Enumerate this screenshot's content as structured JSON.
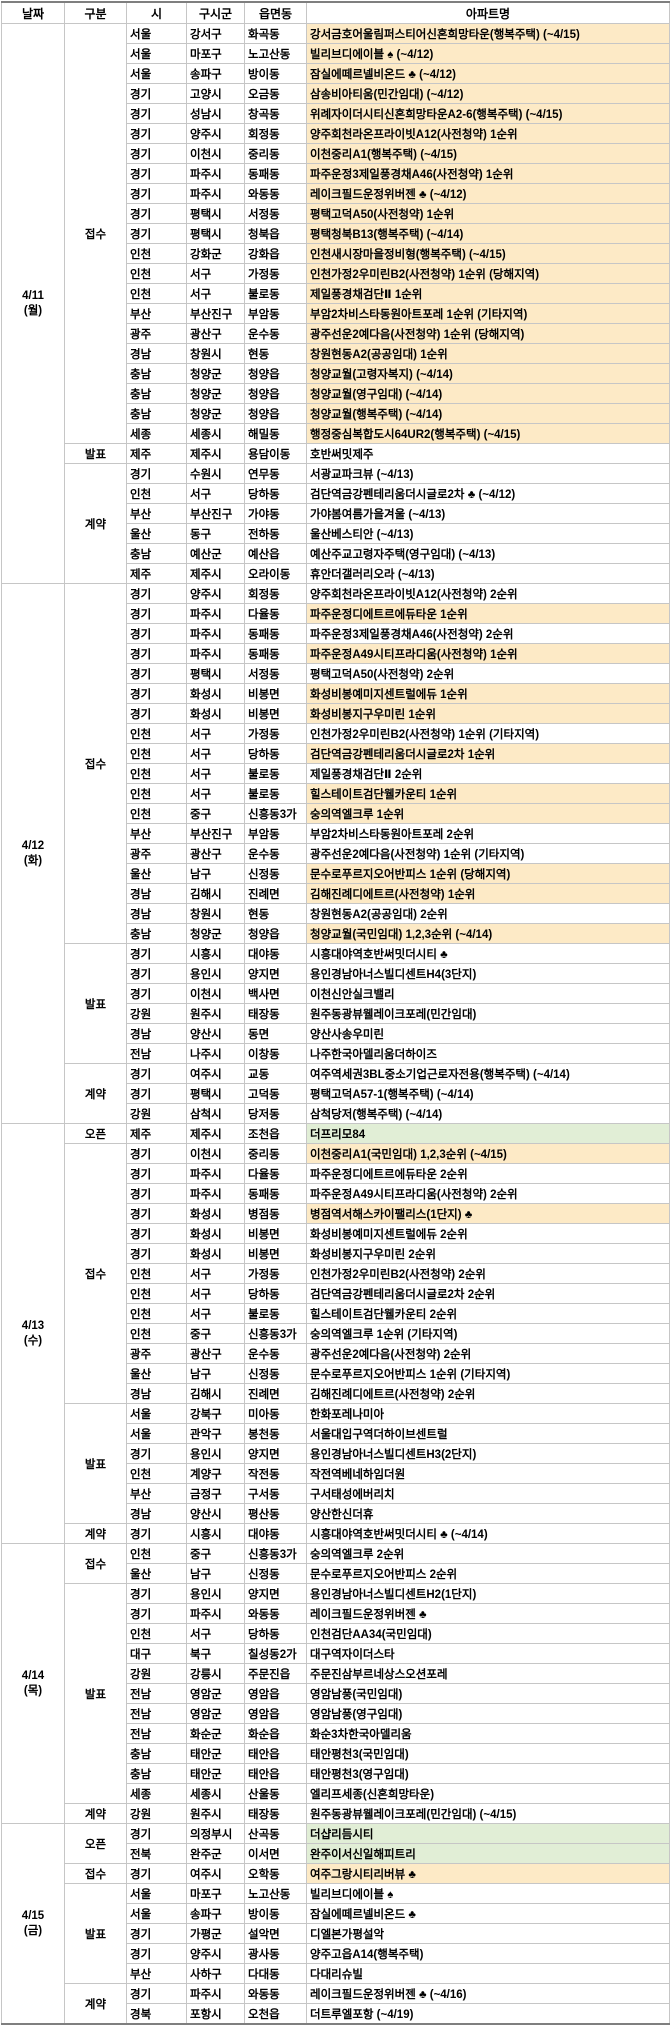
{
  "columns": [
    "날짜",
    "구분",
    "시",
    "구시군",
    "읍면동",
    "아파트명"
  ],
  "colors": {
    "highlight_yellow": "#fdeac6",
    "highlight_green": "#e1eed6",
    "cell_border": "#c6c6c6",
    "outer_border": "#7f7f7f",
    "text": "#000000",
    "background": "#ffffff"
  },
  "legend": {
    "yellow_means": "highlighted schedule row",
    "green_means": "open event row"
  },
  "days": [
    {
      "date": "4/11",
      "weekday": "(월)",
      "groups": [
        {
          "label": "접수",
          "rows": [
            [
              "서울",
              "강서구",
              "화곡동",
              "강서금호어울림퍼스티어신혼희망타운(행복주택) (~4/15)",
              "y"
            ],
            [
              "서울",
              "마포구",
              "노고산동",
              "빌리브디에이블 ♠ (~4/12)",
              "y"
            ],
            [
              "서울",
              "송파구",
              "방이동",
              "잠실에떼르넬비온드 ♣ (~4/12)",
              "y"
            ],
            [
              "경기",
              "고양시",
              "오금동",
              "삼송비아티움(민간임대) (~4/12)",
              "y"
            ],
            [
              "경기",
              "성남시",
              "창곡동",
              "위례자이더시티신혼희망타운A2-6(행복주택) (~4/15)",
              "y"
            ],
            [
              "경기",
              "양주시",
              "회정동",
              "양주회천라온프라이빗A12(사전청약) 1순위",
              "y"
            ],
            [
              "경기",
              "이천시",
              "중리동",
              "이천중리A1(행복주택) (~4/15)",
              "y"
            ],
            [
              "경기",
              "파주시",
              "동패동",
              "파주운정3제일풍경채A46(사전청약) 1순위",
              "y"
            ],
            [
              "경기",
              "파주시",
              "와동동",
              "레이크필드운정위버젠 ♣ (~4/12)",
              "y"
            ],
            [
              "경기",
              "평택시",
              "서정동",
              "평택고덕A50(사전청약) 1순위",
              "y"
            ],
            [
              "경기",
              "평택시",
              "청북읍",
              "평택청북B13(행복주택) (~4/14)",
              "y"
            ],
            [
              "인천",
              "강화군",
              "강화읍",
              "인천새시장마을정비형(행복주택) (~4/15)",
              "y"
            ],
            [
              "인천",
              "서구",
              "가정동",
              "인천가정2우미린B2(사전청약) 1순위 (당해지역)",
              "y"
            ],
            [
              "인천",
              "서구",
              "불로동",
              "제일풍경채검단Ⅱ 1순위",
              "y"
            ],
            [
              "부산",
              "부산진구",
              "부암동",
              "부암2차비스타동원아트포레 1순위 (기타지역)",
              "y"
            ],
            [
              "광주",
              "광산구",
              "운수동",
              "광주선운2예다음(사전청약) 1순위 (당해지역)",
              "y"
            ],
            [
              "경남",
              "창원시",
              "현동",
              "창원현동A2(공공임대) 1순위",
              "y"
            ],
            [
              "충남",
              "청양군",
              "청양읍",
              "청양교월(고령자복지) (~4/14)",
              "y"
            ],
            [
              "충남",
              "청양군",
              "청양읍",
              "청양교월(영구임대) (~4/14)",
              "y"
            ],
            [
              "충남",
              "청양군",
              "청양읍",
              "청양교월(행복주택) (~4/14)",
              "y"
            ],
            [
              "세종",
              "세종시",
              "해밀동",
              "행정중심복합도시64UR2(행복주택) (~4/15)",
              "y"
            ]
          ]
        },
        {
          "label": "발표",
          "rows": [
            [
              "제주",
              "제주시",
              "용담이동",
              "호반써밋제주",
              ""
            ]
          ]
        },
        {
          "label": "계약",
          "rows": [
            [
              "경기",
              "수원시",
              "연무동",
              "서광교파크뷰 (~4/13)",
              ""
            ],
            [
              "인천",
              "서구",
              "당하동",
              "검단역금강펜테리움더시글로2차 ♣ (~4/12)",
              ""
            ],
            [
              "부산",
              "부산진구",
              "가야동",
              "가야봄여름가을겨울 (~4/13)",
              ""
            ],
            [
              "울산",
              "동구",
              "전하동",
              "울산베스티안 (~4/13)",
              ""
            ],
            [
              "충남",
              "예산군",
              "예산읍",
              "예산주교고령자주택(영구임대) (~4/13)",
              ""
            ],
            [
              "제주",
              "제주시",
              "오라이동",
              "휴안더갤러리오라 (~4/13)",
              ""
            ]
          ]
        }
      ]
    },
    {
      "date": "4/12",
      "weekday": "(화)",
      "groups": [
        {
          "label": "접수",
          "rows": [
            [
              "경기",
              "양주시",
              "회정동",
              "양주회천라온프라이빗A12(사전청약) 2순위",
              ""
            ],
            [
              "경기",
              "파주시",
              "다율동",
              "파주운정디에트르에듀타운 1순위",
              "y"
            ],
            [
              "경기",
              "파주시",
              "동패동",
              "파주운정3제일풍경채A46(사전청약) 2순위",
              ""
            ],
            [
              "경기",
              "파주시",
              "동패동",
              "파주운정A49시티프라디움(사전청약) 1순위",
              "y"
            ],
            [
              "경기",
              "평택시",
              "서정동",
              "평택고덕A50(사전청약) 2순위",
              ""
            ],
            [
              "경기",
              "화성시",
              "비봉면",
              "화성비봉예미지센트럴에듀 1순위",
              "y"
            ],
            [
              "경기",
              "화성시",
              "비봉면",
              "화성비봉지구우미린 1순위",
              "y"
            ],
            [
              "인천",
              "서구",
              "가정동",
              "인천가정2우미린B2(사전청약) 1순위 (기타지역)",
              ""
            ],
            [
              "인천",
              "서구",
              "당하동",
              "검단역금강펜테리움더시글로2차 1순위",
              "y"
            ],
            [
              "인천",
              "서구",
              "불로동",
              "제일풍경채검단Ⅱ 2순위",
              ""
            ],
            [
              "인천",
              "서구",
              "불로동",
              "힐스테이트검단웰카운티 1순위",
              "y"
            ],
            [
              "인천",
              "중구",
              "신흥동3가",
              "숭의역엘크루 1순위",
              "y"
            ],
            [
              "부산",
              "부산진구",
              "부암동",
              "부암2차비스타동원아트포레 2순위",
              ""
            ],
            [
              "광주",
              "광산구",
              "운수동",
              "광주선운2예다음(사전청약) 1순위 (기타지역)",
              ""
            ],
            [
              "울산",
              "남구",
              "신정동",
              "문수로푸르지오어반피스 1순위 (당해지역)",
              "y"
            ],
            [
              "경남",
              "김해시",
              "진례면",
              "김해진례디에트르(사전청약) 1순위",
              "y"
            ],
            [
              "경남",
              "창원시",
              "현동",
              "창원현동A2(공공임대) 2순위",
              ""
            ],
            [
              "충남",
              "청양군",
              "청양읍",
              "청양교월(국민임대) 1,2,3순위 (~4/14)",
              "y"
            ]
          ]
        },
        {
          "label": "발표",
          "rows": [
            [
              "경기",
              "시흥시",
              "대야동",
              "시흥대야역호반써밋더시티 ♣",
              ""
            ],
            [
              "경기",
              "용인시",
              "양지면",
              "용인경남아너스빌디센트H4(3단지)",
              ""
            ],
            [
              "경기",
              "이천시",
              "백사면",
              "이천신안실크밸리",
              ""
            ],
            [
              "강원",
              "원주시",
              "태장동",
              "원주동광뷰웰레이크포레(민간임대)",
              ""
            ],
            [
              "경남",
              "양산시",
              "동면",
              "양산사송우미린",
              ""
            ],
            [
              "전남",
              "나주시",
              "이창동",
              "나주한국아델리움더하이즈",
              ""
            ]
          ]
        },
        {
          "label": "계약",
          "rows": [
            [
              "경기",
              "여주시",
              "교동",
              "여주역세권3BL중소기업근로자전용(행복주택) (~4/14)",
              ""
            ],
            [
              "경기",
              "평택시",
              "고덕동",
              "평택고덕A57-1(행복주택) (~4/14)",
              ""
            ],
            [
              "강원",
              "삼척시",
              "당저동",
              "삼척당저(행복주택) (~4/14)",
              ""
            ]
          ]
        }
      ]
    },
    {
      "date": "4/13",
      "weekday": "(수)",
      "groups": [
        {
          "label": "오픈",
          "rows": [
            [
              "제주",
              "제주시",
              "조천읍",
              "더프리모84",
              "g"
            ]
          ]
        },
        {
          "label": "접수",
          "rows": [
            [
              "경기",
              "이천시",
              "중리동",
              "이천중리A1(국민임대) 1,2,3순위 (~4/15)",
              "y"
            ],
            [
              "경기",
              "파주시",
              "다율동",
              "파주운정디에트르에듀타운 2순위",
              ""
            ],
            [
              "경기",
              "파주시",
              "동패동",
              "파주운정A49시티프라디움(사전청약) 2순위",
              ""
            ],
            [
              "경기",
              "화성시",
              "병점동",
              "병점역서해스카이팰리스(1단지) ♣",
              "y"
            ],
            [
              "경기",
              "화성시",
              "비봉면",
              "화성비봉예미지센트럴에듀 2순위",
              ""
            ],
            [
              "경기",
              "화성시",
              "비봉면",
              "화성비봉지구우미린 2순위",
              ""
            ],
            [
              "인천",
              "서구",
              "가정동",
              "인천가정2우미린B2(사전청약) 2순위",
              ""
            ],
            [
              "인천",
              "서구",
              "당하동",
              "검단역금강펜테리움더시글로2차 2순위",
              ""
            ],
            [
              "인천",
              "서구",
              "불로동",
              "힐스테이트검단웰카운티 2순위",
              ""
            ],
            [
              "인천",
              "중구",
              "신흥동3가",
              "숭의역엘크루 1순위 (기타지역)",
              ""
            ],
            [
              "광주",
              "광산구",
              "운수동",
              "광주선운2예다음(사전청약) 2순위",
              ""
            ],
            [
              "울산",
              "남구",
              "신정동",
              "문수로푸르지오어반피스 1순위 (기타지역)",
              ""
            ],
            [
              "경남",
              "김해시",
              "진례면",
              "김해진례디에트르(사전청약) 2순위",
              ""
            ]
          ]
        },
        {
          "label": "발표",
          "rows": [
            [
              "서울",
              "강북구",
              "미아동",
              "한화포레나미아",
              ""
            ],
            [
              "서울",
              "관악구",
              "봉천동",
              "서울대입구역더하이브센트럴",
              ""
            ],
            [
              "경기",
              "용인시",
              "양지면",
              "용인경남아너스빌디센트H3(2단지)",
              ""
            ],
            [
              "인천",
              "계양구",
              "작전동",
              "작전역베네하임더원",
              ""
            ],
            [
              "부산",
              "금정구",
              "구서동",
              "구서태성에버리치",
              ""
            ],
            [
              "경남",
              "양산시",
              "평산동",
              "양산한신더휴",
              ""
            ]
          ]
        },
        {
          "label": "계약",
          "rows": [
            [
              "경기",
              "시흥시",
              "대야동",
              "시흥대야역호반써밋더시티 ♣ (~4/14)",
              ""
            ]
          ]
        }
      ]
    },
    {
      "date": "4/14",
      "weekday": "(목)",
      "groups": [
        {
          "label": "접수",
          "rows": [
            [
              "인천",
              "중구",
              "신흥동3가",
              "숭의역엘크루 2순위",
              ""
            ],
            [
              "울산",
              "남구",
              "신정동",
              "문수로푸르지오어반피스 2순위",
              ""
            ]
          ]
        },
        {
          "label": "발표",
          "rows": [
            [
              "경기",
              "용인시",
              "양지면",
              "용인경남아너스빌디센트H2(1단지)",
              ""
            ],
            [
              "경기",
              "파주시",
              "와동동",
              "레이크필드운정위버젠 ♣",
              ""
            ],
            [
              "인천",
              "서구",
              "당하동",
              "인천검단AA34(국민임대)",
              ""
            ],
            [
              "대구",
              "북구",
              "칠성동2가",
              "대구역자이더스타",
              ""
            ],
            [
              "강원",
              "강릉시",
              "주문진읍",
              "주문진삼부르네상스오션포레",
              ""
            ],
            [
              "전남",
              "영암군",
              "영암읍",
              "영암남풍(국민임대)",
              ""
            ],
            [
              "전남",
              "영암군",
              "영암읍",
              "영암남풍(영구임대)",
              ""
            ],
            [
              "전남",
              "화순군",
              "화순읍",
              "화순3차한국아델리움",
              ""
            ],
            [
              "충남",
              "태안군",
              "태안읍",
              "태안평천3(국민임대)",
              ""
            ],
            [
              "충남",
              "태안군",
              "태안읍",
              "태안평천3(영구임대)",
              ""
            ],
            [
              "세종",
              "세종시",
              "산울동",
              "엘리프세종(신혼희망타운)",
              ""
            ]
          ]
        },
        {
          "label": "계약",
          "rows": [
            [
              "강원",
              "원주시",
              "태장동",
              "원주동광뷰웰레이크포레(민간임대) (~4/15)",
              ""
            ]
          ]
        }
      ]
    },
    {
      "date": "4/15",
      "weekday": "(금)",
      "groups": [
        {
          "label": "오픈",
          "rows": [
            [
              "경기",
              "의정부시",
              "산곡동",
              "더샵리듬시티",
              "g"
            ],
            [
              "전북",
              "완주군",
              "이서면",
              "완주이서신일해피트리",
              "g"
            ]
          ]
        },
        {
          "label": "접수",
          "rows": [
            [
              "경기",
              "여주시",
              "오학동",
              "여주그랑시티리버뷰 ♣",
              "y"
            ]
          ]
        },
        {
          "label": "발표",
          "rows": [
            [
              "서울",
              "마포구",
              "노고산동",
              "빌리브디에이블 ♠",
              ""
            ],
            [
              "서울",
              "송파구",
              "방이동",
              "잠실에떼르넬비온드 ♣",
              ""
            ],
            [
              "경기",
              "가평군",
              "설악면",
              "디엘본가평설악",
              ""
            ],
            [
              "경기",
              "양주시",
              "광사동",
              "양주고읍A14(행복주택)",
              ""
            ],
            [
              "부산",
              "사하구",
              "다대동",
              "다대리슈빌",
              ""
            ]
          ]
        },
        {
          "label": "계약",
          "rows": [
            [
              "경기",
              "파주시",
              "와동동",
              "레이크필드운정위버젠 ♣ (~4/16)",
              ""
            ],
            [
              "경북",
              "포항시",
              "오천읍",
              "더트루엘포항 (~4/19)",
              ""
            ]
          ]
        }
      ]
    }
  ]
}
